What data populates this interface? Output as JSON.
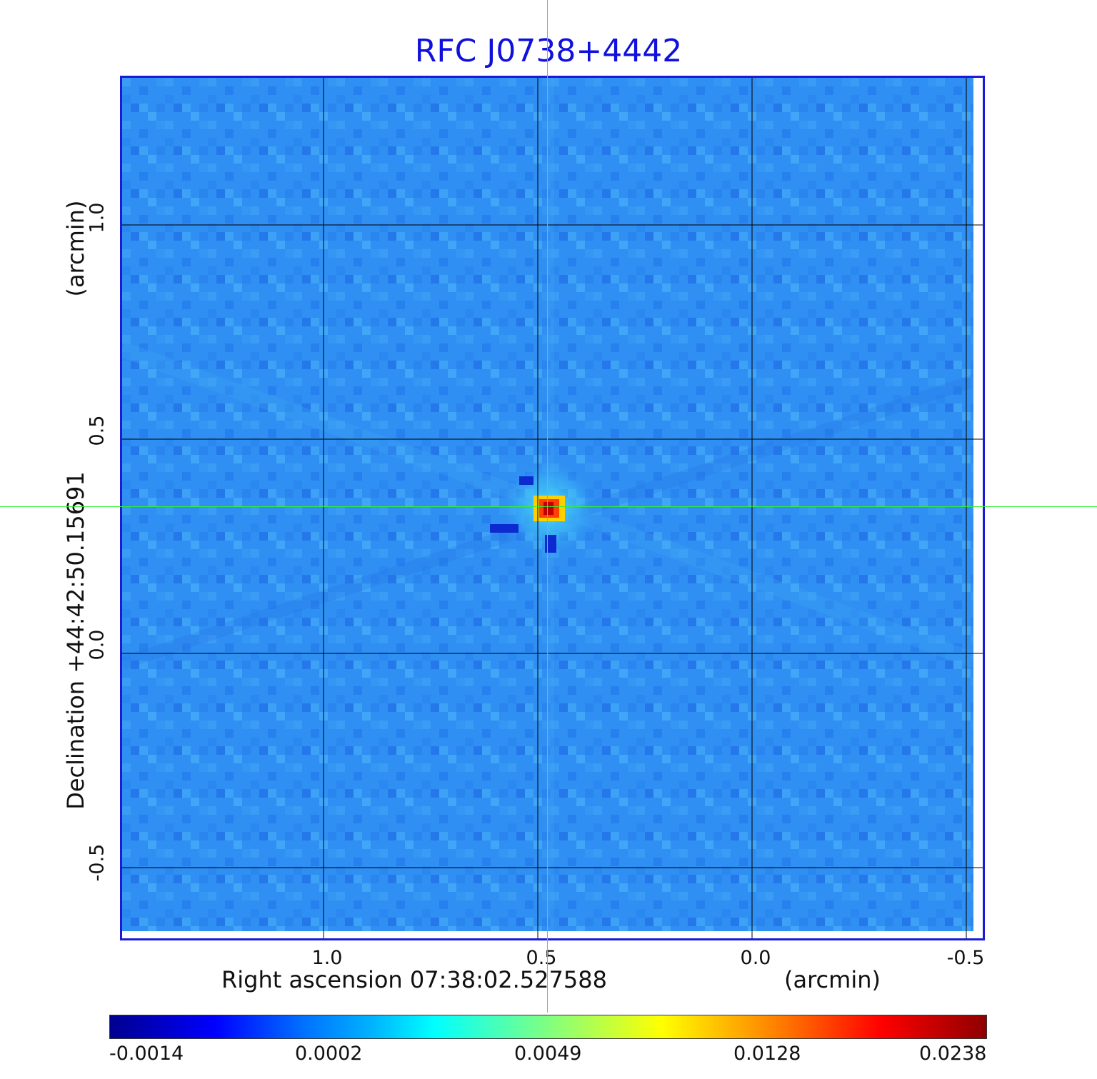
{
  "title": "RFC J0738+4442",
  "axes": {
    "x_label": "Right ascension  07:38:02.527588",
    "x_unit": "(arcmin)",
    "y_label": "Declination  +44:42:50.15691",
    "y_unit": "(arcmin)",
    "x_ticks": [
      "1.0",
      "0.5",
      "0.0",
      "-0.5"
    ],
    "y_ticks": [
      "1.0",
      "0.5",
      "0.0",
      "-0.5"
    ]
  },
  "colorbar": {
    "tick_labels": [
      "-0.0014",
      "0.0002",
      "0.0049",
      "0.0128",
      "0.0238"
    ],
    "colormap": "jet"
  },
  "colors": {
    "title": "#1010dd",
    "frame": "#1a1ad8",
    "background_map": "#2f8ff2",
    "crosshair": "#33ee33",
    "grid": "#000000"
  }
}
